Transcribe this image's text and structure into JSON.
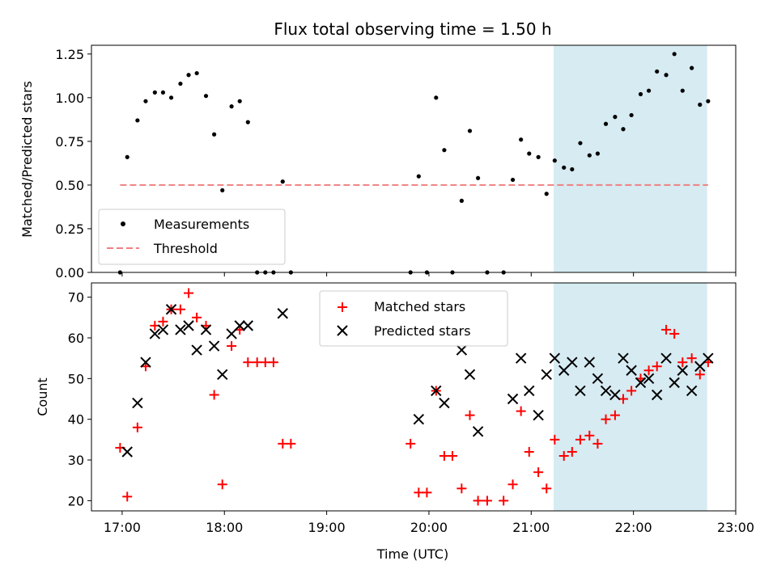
{
  "figure": {
    "title": "Flux total observing time = 1.50 h",
    "xlabel": "Time (UTC)",
    "x_ticks": [
      "17:00",
      "18:00",
      "19:00",
      "20:00",
      "21:00",
      "22:00",
      "23:00"
    ],
    "x_tick_values": [
      17,
      18,
      19,
      20,
      21,
      22,
      23
    ],
    "xlim": [
      16.7,
      23.0
    ],
    "highlight_span": [
      21.22,
      22.72
    ],
    "highlight_color": "#add8e6"
  },
  "chart_data": [
    {
      "type": "scatter",
      "ylabel": "Matched/Predicted stars",
      "ylim": [
        0.0,
        1.3
      ],
      "y_ticks": [
        "0.00",
        "0.25",
        "0.50",
        "0.75",
        "1.00",
        "1.25"
      ],
      "y_tick_values": [
        0,
        0.25,
        0.5,
        0.75,
        1.0,
        1.25
      ],
      "legend_position": "lower-left",
      "series": [
        {
          "name": "Measurements",
          "color": "#000000",
          "x": [
            16.98,
            17.05,
            17.15,
            17.23,
            17.32,
            17.4,
            17.48,
            17.57,
            17.65,
            17.73,
            17.82,
            17.9,
            17.98,
            18.07,
            18.15,
            18.23,
            18.32,
            18.4,
            18.48,
            18.57,
            18.65,
            19.82,
            19.9,
            19.98,
            20.07,
            20.15,
            20.23,
            20.32,
            20.4,
            20.48,
            20.57,
            20.73,
            20.82,
            20.9,
            20.98,
            21.07,
            21.15,
            21.23,
            21.32,
            21.4,
            21.48,
            21.57,
            21.65,
            21.73,
            21.82,
            21.9,
            21.98,
            22.07,
            22.15,
            22.23,
            22.32,
            22.4,
            22.48,
            22.57,
            22.65,
            22.73
          ],
          "y": [
            0.0,
            0.66,
            0.87,
            0.98,
            1.03,
            1.03,
            1.0,
            1.08,
            1.13,
            1.14,
            1.01,
            0.79,
            0.47,
            0.95,
            0.98,
            0.86,
            0.0,
            0.0,
            0.0,
            0.52,
            0.0,
            0.0,
            0.55,
            0.0,
            1.0,
            0.7,
            0.0,
            0.41,
            0.81,
            0.54,
            0.0,
            0.0,
            0.53,
            0.76,
            0.68,
            0.66,
            0.45,
            0.64,
            0.6,
            0.59,
            0.74,
            0.67,
            0.68,
            0.85,
            0.89,
            0.82,
            0.9,
            1.02,
            1.04,
            1.15,
            1.13,
            1.25,
            1.04,
            1.17,
            0.96,
            0.98
          ]
        },
        {
          "name": "Threshold",
          "color": "#f08080",
          "style": "dashed",
          "x": [
            16.98,
            22.73
          ],
          "y": [
            0.5,
            0.5
          ]
        }
      ]
    },
    {
      "type": "scatter",
      "ylabel": "Count",
      "ylim": [
        17.5,
        73.5
      ],
      "y_ticks": [
        "20",
        "30",
        "40",
        "50",
        "60",
        "70"
      ],
      "y_tick_values": [
        20,
        30,
        40,
        50,
        60,
        70
      ],
      "legend_position": "upper-center",
      "series": [
        {
          "name": "Matched stars",
          "color": "#ff0000",
          "marker": "plus",
          "x": [
            16.98,
            17.05,
            17.15,
            17.23,
            17.32,
            17.4,
            17.48,
            17.57,
            17.65,
            17.73,
            17.82,
            17.9,
            17.98,
            18.07,
            18.15,
            18.23,
            18.32,
            18.4,
            18.48,
            18.57,
            18.65,
            19.82,
            19.9,
            19.98,
            20.07,
            20.15,
            20.23,
            20.32,
            20.4,
            20.48,
            20.57,
            20.73,
            20.82,
            20.9,
            20.98,
            21.07,
            21.15,
            21.23,
            21.32,
            21.4,
            21.48,
            21.57,
            21.65,
            21.73,
            21.82,
            21.9,
            21.98,
            22.07,
            22.15,
            22.23,
            22.32,
            22.4,
            22.48,
            22.57,
            22.65,
            22.73
          ],
          "y": [
            33,
            21,
            38,
            53,
            63,
            64,
            67,
            67,
            71,
            65,
            63,
            46,
            24,
            58,
            62,
            54,
            54,
            54,
            54,
            34,
            34,
            34,
            22,
            22,
            47,
            31,
            31,
            23,
            41,
            20,
            20,
            20,
            24,
            42,
            32,
            27,
            23,
            35,
            31,
            32,
            35,
            36,
            34,
            40,
            41,
            45,
            47,
            50,
            52,
            53,
            62,
            61,
            54,
            55,
            51,
            54
          ]
        },
        {
          "name": "Predicted stars",
          "color": "#000000",
          "marker": "x",
          "x": [
            17.05,
            17.15,
            17.23,
            17.32,
            17.4,
            17.48,
            17.57,
            17.65,
            17.73,
            17.82,
            17.9,
            17.98,
            18.07,
            18.15,
            18.23,
            18.57,
            19.9,
            20.07,
            20.15,
            20.32,
            20.4,
            20.48,
            20.82,
            20.9,
            20.98,
            21.07,
            21.15,
            21.23,
            21.32,
            21.4,
            21.48,
            21.57,
            21.65,
            21.73,
            21.82,
            21.9,
            21.98,
            22.07,
            22.15,
            22.23,
            22.32,
            22.4,
            22.48,
            22.57,
            22.65,
            22.73
          ],
          "y": [
            32,
            44,
            54,
            61,
            62,
            67,
            62,
            63,
            57,
            62,
            58,
            51,
            61,
            63,
            63,
            66,
            40,
            47,
            44,
            57,
            51,
            37,
            45,
            55,
            47,
            41,
            51,
            55,
            52,
            54,
            47,
            54,
            50,
            47,
            46,
            55,
            52,
            49,
            50,
            46,
            55,
            49,
            52,
            47,
            53,
            55
          ]
        }
      ]
    }
  ]
}
